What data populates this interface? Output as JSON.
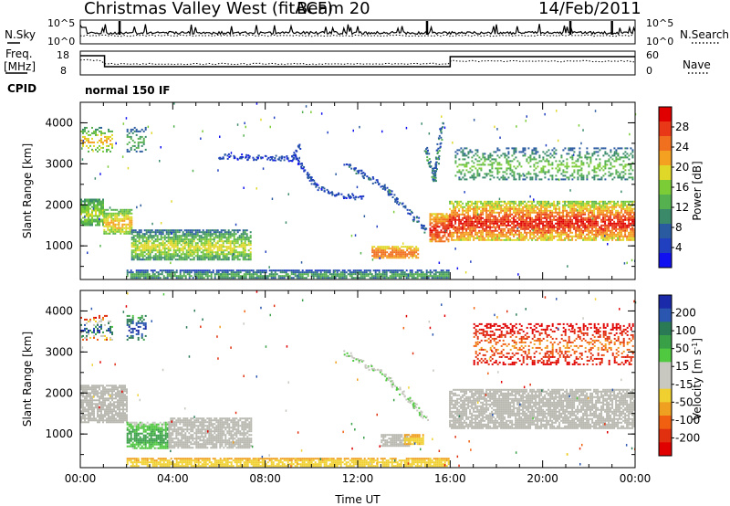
{
  "header": {
    "title": "Christmas Valley West (fitACF)",
    "beam": "Beam 20",
    "date": "14/Feb/2011"
  },
  "summary": {
    "nsky_label": "N.Sky",
    "nsky_ticks": [
      "10^5",
      "10^0"
    ],
    "nsearch_label": "N.Search",
    "nsearch_ticks": [
      "10^5",
      "10^0"
    ],
    "freq_label": "Freq.",
    "freq_unit": "[MHz]",
    "freq_ticks": [
      "18",
      "8"
    ],
    "nave_label": "Nave",
    "nave_ticks": [
      "60",
      "0"
    ],
    "cpid_label": "CPID",
    "cpid_value": "normal 150 IF"
  },
  "colors": {
    "power_scale": [
      "#1010f0",
      "#2040c0",
      "#2a5aa0",
      "#3a8a6a",
      "#55b050",
      "#7ccc38",
      "#e0d828",
      "#f4a020",
      "#f07020",
      "#e83818",
      "#e00000"
    ],
    "velocity_scale": [
      "#1a2aa8",
      "#2a56b0",
      "#2a7a55",
      "#3aa048",
      "#50c840",
      "#c8c8c0",
      "#c8c8c0",
      "#f0d030",
      "#f0a020",
      "#f06010",
      "#e03010",
      "#e00000"
    ],
    "ground_scatter": "#b8b8b0"
  },
  "chart_data": [
    {
      "type": "heatmap",
      "name": "power",
      "ylabel": "Slant Range [km]",
      "yticks": [
        "4000",
        "3000",
        "2000",
        "1000"
      ],
      "ylim": [
        180,
        4500
      ],
      "xlim": [
        0,
        24
      ],
      "colorbar_label": "Power [dB]",
      "colorbar_ticks": [
        "28",
        "24",
        "20",
        "16",
        "12",
        "8",
        "4"
      ],
      "colorbar_range": [
        0,
        32
      ],
      "features": [
        {
          "kind": "band",
          "x": [
            0.0,
            1.0
          ],
          "y": [
            1500,
            2150
          ],
          "v": [
            10,
            18
          ]
        },
        {
          "kind": "band",
          "x": [
            1.0,
            2.2
          ],
          "y": [
            1300,
            1900
          ],
          "v": [
            12,
            22
          ]
        },
        {
          "kind": "band",
          "x": [
            2.2,
            7.4
          ],
          "y": [
            650,
            1400
          ],
          "v": [
            6,
            20
          ]
        },
        {
          "kind": "band",
          "x": [
            12.6,
            14.6
          ],
          "y": [
            700,
            1000
          ],
          "v": [
            18,
            26
          ]
        },
        {
          "kind": "band",
          "x": [
            15.1,
            15.9
          ],
          "y": [
            1100,
            1800
          ],
          "v": [
            18,
            30
          ]
        },
        {
          "kind": "band",
          "x": [
            15.95,
            24.0
          ],
          "y": [
            1150,
            2100
          ],
          "v": [
            14,
            30
          ]
        },
        {
          "kind": "band",
          "x": [
            2.0,
            15.9
          ],
          "y": [
            200,
            420
          ],
          "v": [
            4,
            14
          ]
        },
        {
          "kind": "line",
          "x": [
            6.0,
            9.3,
            10.2,
            11.2,
            12.3
          ],
          "y": [
            3200,
            3150,
            2450,
            2250,
            2200
          ],
          "v": [
            2,
            8
          ]
        },
        {
          "kind": "line",
          "x": [
            9.2,
            9.5
          ],
          "y": [
            3200,
            3500
          ],
          "v": [
            2,
            8
          ]
        },
        {
          "kind": "line",
          "x": [
            11.4,
            13.0,
            14.1,
            15.0
          ],
          "y": [
            3000,
            2500,
            1900,
            1350
          ],
          "v": [
            3,
            10
          ]
        },
        {
          "kind": "line",
          "x": [
            14.9,
            15.3,
            15.6
          ],
          "y": [
            3400,
            2600,
            4000
          ],
          "v": [
            4,
            14
          ]
        },
        {
          "kind": "blob",
          "x": [
            0.0,
            1.4
          ],
          "y": [
            3300,
            3900
          ],
          "v": [
            8,
            22
          ]
        },
        {
          "kind": "blob",
          "x": [
            2.0,
            2.8
          ],
          "y": [
            3300,
            3900
          ],
          "v": [
            6,
            14
          ]
        },
        {
          "kind": "blob",
          "x": [
            16.2,
            23.9
          ],
          "y": [
            2600,
            3400
          ],
          "v": [
            6,
            16
          ]
        }
      ]
    },
    {
      "type": "heatmap",
      "name": "velocity",
      "ylabel": "Slant Range [km]",
      "xlabel": "Time UT",
      "xticks": [
        "00:00",
        "04:00",
        "08:00",
        "12:00",
        "16:00",
        "20:00",
        "00:00"
      ],
      "yticks": [
        "4000",
        "3000",
        "2000",
        "1000"
      ],
      "ylim": [
        180,
        4500
      ],
      "xlim": [
        0,
        24
      ],
      "colorbar_label": "Velocity [m s^-1]",
      "colorbar_ticks": [
        "200",
        "100",
        "50",
        "15",
        "-15",
        "-50",
        "-100",
        "-200"
      ],
      "features": [
        {
          "kind": "ground",
          "x": [
            0.0,
            2.0
          ],
          "y": [
            1300,
            2200
          ]
        },
        {
          "kind": "band",
          "x": [
            2.0,
            3.8
          ],
          "y": [
            650,
            1300
          ],
          "v": [
            40,
            90
          ]
        },
        {
          "kind": "ground",
          "x": [
            3.8,
            7.4
          ],
          "y": [
            650,
            1400
          ]
        },
        {
          "kind": "ground",
          "x": [
            13.0,
            14.2
          ],
          "y": [
            700,
            1000
          ]
        },
        {
          "kind": "band",
          "x": [
            14.0,
            14.8
          ],
          "y": [
            750,
            1000
          ],
          "v": [
            -70,
            -30
          ]
        },
        {
          "kind": "ground",
          "x": [
            15.95,
            24.0
          ],
          "y": [
            1150,
            2100
          ]
        },
        {
          "kind": "band",
          "x": [
            2.0,
            15.9
          ],
          "y": [
            200,
            420
          ],
          "v": [
            -60,
            -25
          ]
        },
        {
          "kind": "line",
          "x": [
            11.4,
            13.0,
            14.1,
            15.0
          ],
          "y": [
            3000,
            2500,
            1900,
            1350
          ],
          "v": [
            20,
            70
          ]
        },
        {
          "kind": "blob",
          "x": [
            0.0,
            1.4
          ],
          "y": [
            3300,
            3900
          ],
          "v": [
            -200,
            200
          ]
        },
        {
          "kind": "blob",
          "x": [
            2.0,
            2.8
          ],
          "y": [
            3300,
            3900
          ],
          "v": [
            60,
            220
          ]
        },
        {
          "kind": "blob",
          "x": [
            17.0,
            23.9
          ],
          "y": [
            2700,
            3700
          ],
          "v": [
            -220,
            -60
          ]
        }
      ]
    }
  ]
}
